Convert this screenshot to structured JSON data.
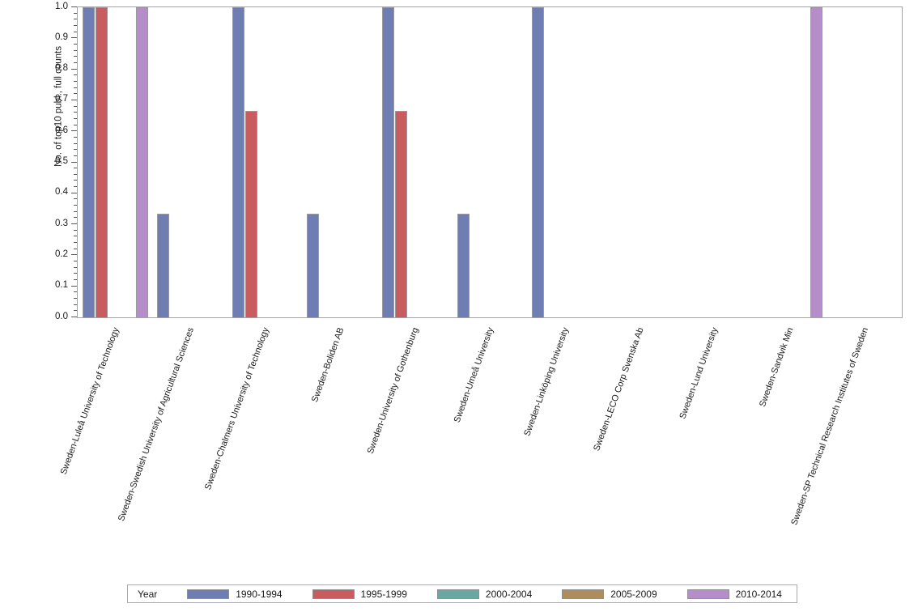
{
  "chart_data": {
    "type": "bar",
    "title": "",
    "xlabel": "",
    "ylabel": "No. of top10 publ., full counts",
    "ylim": [
      0.0,
      1.0
    ],
    "y_ticks": [
      "0.0",
      "0.1",
      "0.2",
      "0.3",
      "0.4",
      "0.5",
      "0.6",
      "0.7",
      "0.8",
      "0.9",
      "1.0"
    ],
    "y_minor_per_major": 4,
    "grid": false,
    "legend": {
      "title": "Year",
      "position": "bottom"
    },
    "categories": [
      "Sweden-Luleå University of Technology",
      "Sweden-Swedish University of Agricultural Sciences",
      "Sweden-Chalmers University of Technology",
      "Sweden-Boliden AB",
      "Sweden-University of Gothenburg",
      "Sweden-Umeå University",
      "Sweden-Linköping University",
      "Sweden-LECO Corp Svenska Ab",
      "Sweden-Lund University",
      "Sweden-Sandvik Min",
      "Sweden-SP Technical Research Institutes of Sweden"
    ],
    "series": [
      {
        "name": "1990-1994",
        "color": "#6E7DB2",
        "values": [
          1.0,
          0.333,
          1.0,
          0.333,
          1.0,
          0.333,
          1.0,
          0,
          0,
          0,
          0
        ]
      },
      {
        "name": "1995-1999",
        "color": "#C85C5E",
        "values": [
          1.0,
          0,
          0.667,
          0,
          0.667,
          0,
          0,
          0,
          0,
          0,
          0
        ]
      },
      {
        "name": "2000-2004",
        "color": "#69A8A1",
        "values": [
          0,
          0,
          0,
          0,
          0,
          0,
          0,
          0,
          0,
          0,
          0
        ]
      },
      {
        "name": "2005-2009",
        "color": "#AF8C5E",
        "values": [
          0,
          0,
          0,
          0,
          0,
          0,
          0,
          0,
          0,
          0,
          0
        ]
      },
      {
        "name": "2010-2014",
        "color": "#B58DC9",
        "values": [
          1.0,
          0,
          0,
          0,
          0,
          0,
          0,
          0,
          0,
          1.0,
          0
        ]
      }
    ]
  }
}
